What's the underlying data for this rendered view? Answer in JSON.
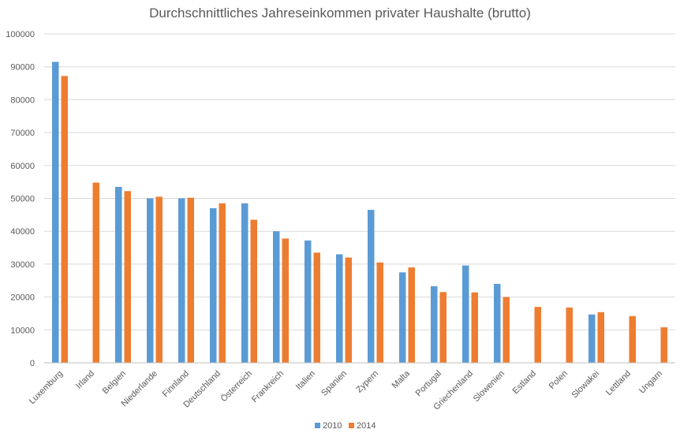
{
  "chart_data": {
    "type": "bar",
    "title": "Durchschnittliches Jahreseinkommen privater Haushalte (brutto)",
    "xlabel": "",
    "ylabel": "",
    "ylim": [
      0,
      100000
    ],
    "yticks": [
      0,
      10000,
      20000,
      30000,
      40000,
      50000,
      60000,
      70000,
      80000,
      90000,
      100000
    ],
    "grid": true,
    "legend_position": "bottom",
    "categories": [
      "Luxemburg",
      "Irland",
      "Belgien",
      "Niederlande",
      "Finnland",
      "Deutschland",
      "Österreich",
      "Frankreich",
      "Italien",
      "Spanien",
      "Zypern",
      "Malta",
      "Portugal",
      "Griechenland",
      "Slowenien",
      "Estland",
      "Polen",
      "Slowakei",
      "Lettland",
      "Ungarn"
    ],
    "series": [
      {
        "name": "2010",
        "color": "#5b9bd5",
        "values": [
          91500,
          null,
          53500,
          50000,
          50000,
          47000,
          48500,
          40000,
          37200,
          33000,
          46500,
          27500,
          23300,
          29600,
          24000,
          null,
          null,
          14700,
          null,
          null
        ]
      },
      {
        "name": "2014",
        "color": "#ed7d31",
        "values": [
          87200,
          54800,
          52200,
          50500,
          50200,
          48500,
          43500,
          37800,
          33500,
          32000,
          30500,
          29000,
          21500,
          21400,
          20000,
          17000,
          16800,
          15400,
          14200,
          10800
        ]
      }
    ]
  }
}
